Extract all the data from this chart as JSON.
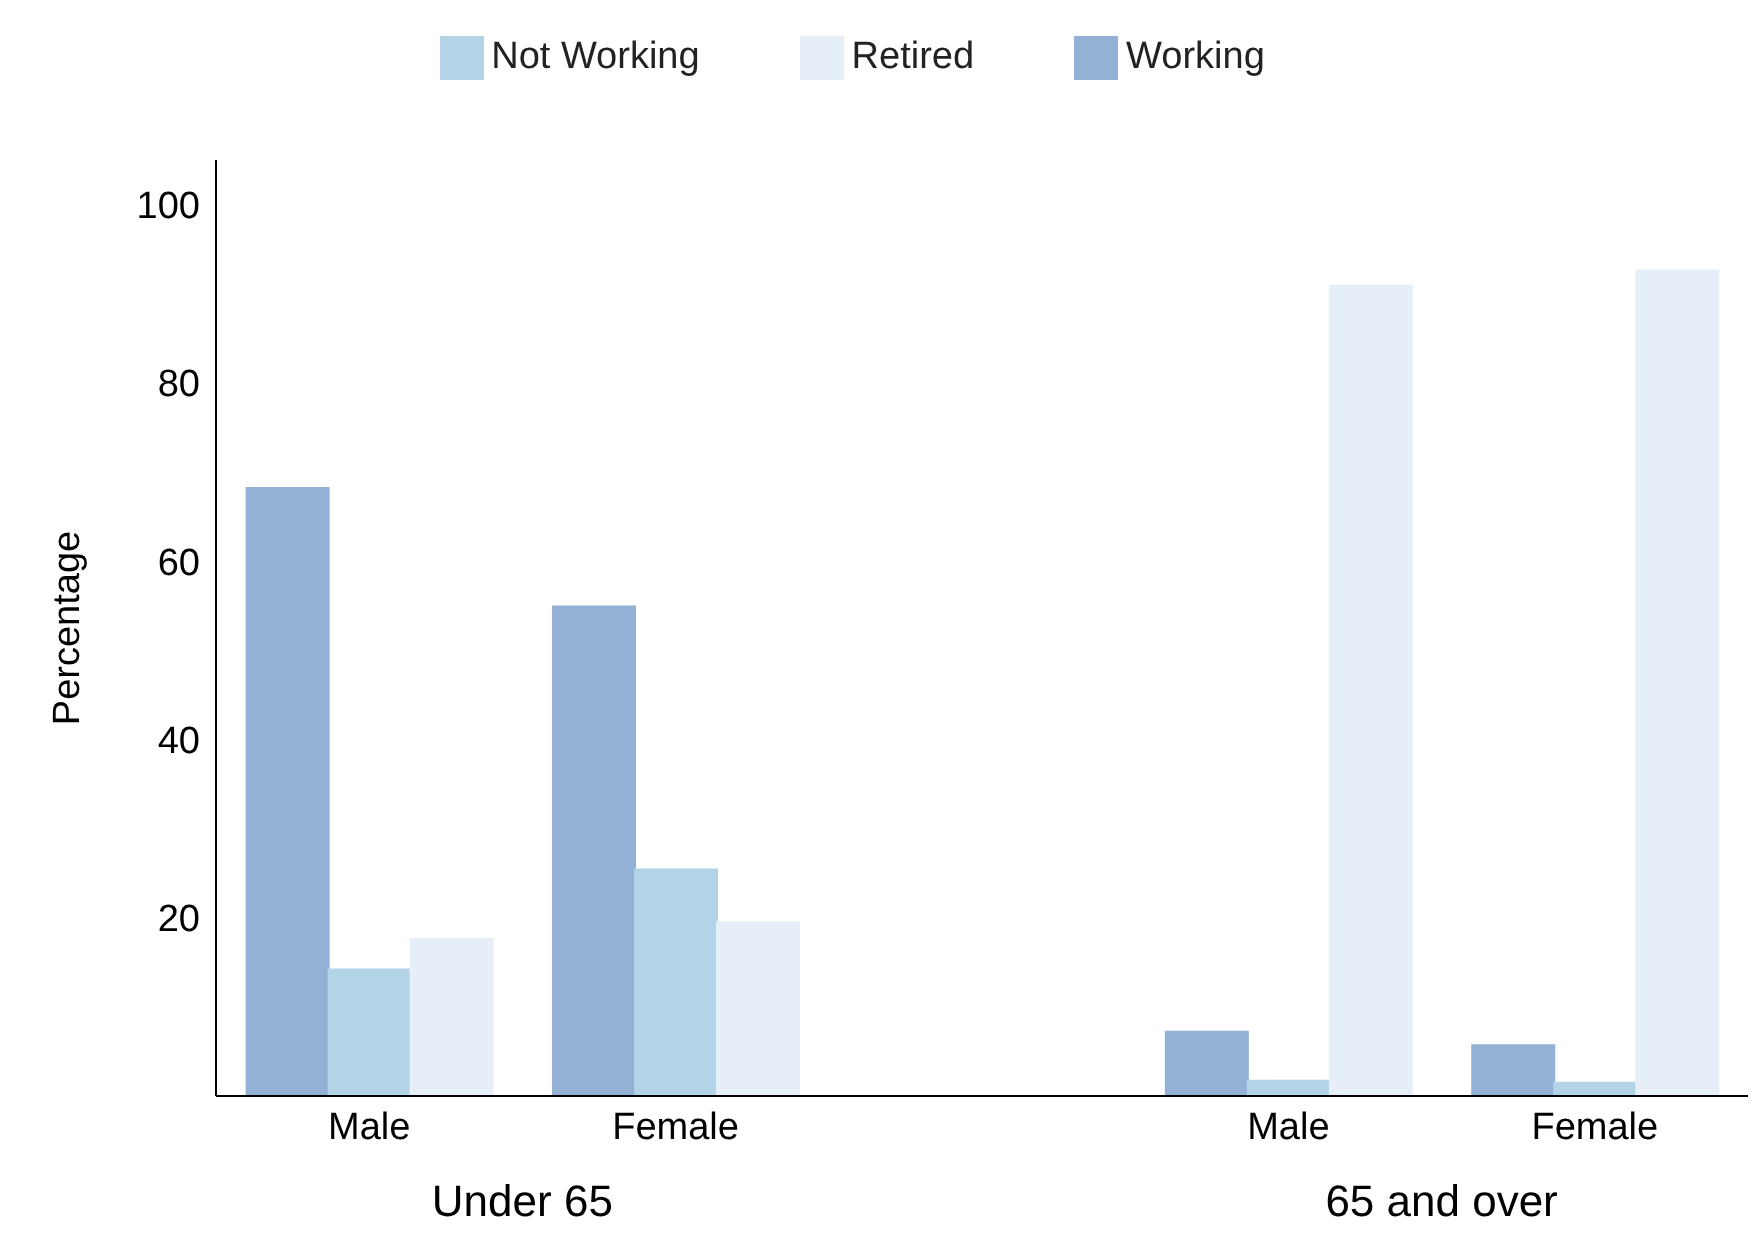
{
  "chart_data": {
    "type": "bar",
    "ylabel": "Percentage",
    "categories": [
      "Male",
      "Female",
      null,
      "Male",
      "Female"
    ],
    "series": [
      {
        "name": "Working",
        "color": "#92b1d5",
        "values": [
          68.2,
          54.9,
          null,
          7.2,
          5.7
        ]
      },
      {
        "name": "Not Working",
        "color": "#b3d4e6",
        "values": [
          14.2,
          25.4,
          null,
          1.7,
          1.5
        ]
      },
      {
        "name": "Retired",
        "color": "#e6eff7",
        "values": [
          17.6,
          19.5,
          null,
          90.9,
          92.6
        ]
      }
    ],
    "annotations": [
      "Under 65",
      "65 and over"
    ],
    "ylim": [
      0,
      105
    ],
    "yticks": [
      20,
      40,
      60,
      80,
      100
    ],
    "grid": false,
    "legend": "top"
  }
}
